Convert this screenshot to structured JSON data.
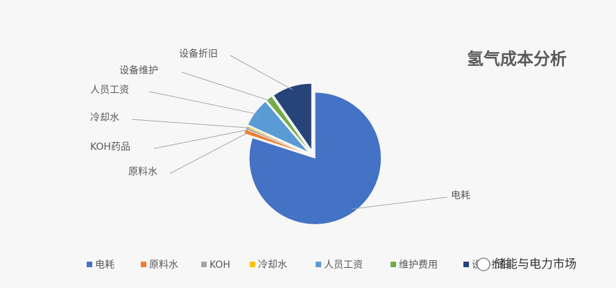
{
  "chart_data": {
    "type": "pie",
    "title": "氢气成本分析",
    "categories": [
      "电耗",
      "原料水",
      "KOH药品",
      "冷却水",
      "人员工资",
      "设备维护",
      "设备折旧"
    ],
    "values": [
      80,
      1,
      0.5,
      0.3,
      7,
      1.5,
      9.7
    ],
    "colors": [
      "#4472c4",
      "#ed7d31",
      "#a5a5a5",
      "#ffc000",
      "#5b9bd5",
      "#70ad47",
      "#264478"
    ],
    "legend_labels": [
      "电耗",
      "原料水",
      "KOH",
      "冷却水",
      "人员工资",
      "维护费用",
      "设备折旧"
    ],
    "legend": "bottom"
  },
  "watermark": "储能与电力市场"
}
